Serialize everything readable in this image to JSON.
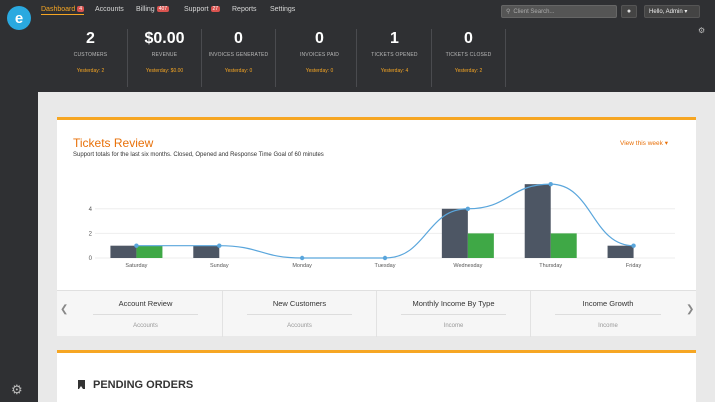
{
  "brand": {
    "logo_letter": "e"
  },
  "nav": {
    "items": [
      {
        "label": "Dashboard",
        "badge": "4",
        "active": true
      },
      {
        "label": "Accounts",
        "badge": ""
      },
      {
        "label": "Billing",
        "badge": "407"
      },
      {
        "label": "Support",
        "badge": "27"
      },
      {
        "label": "Reports",
        "badge": ""
      },
      {
        "label": "Settings",
        "badge": ""
      }
    ],
    "search_placeholder": "Client Search...",
    "notify_icon": "bell-icon",
    "user_label": "Hello, Admin"
  },
  "stats": [
    {
      "value": "2",
      "label": "CUSTOMERS",
      "yesterday": "Yesterday: 2"
    },
    {
      "value": "$0.00",
      "label": "REVENUE",
      "yesterday": "Yesterday: $0.00"
    },
    {
      "value": "0",
      "label": "INVOICES GENERATED",
      "yesterday": "Yesterday: 0"
    },
    {
      "value": "0",
      "label": "INVOICES PAID",
      "yesterday": "Yesterday: 0"
    },
    {
      "value": "1",
      "label": "TICKETS OPENED",
      "yesterday": "Yesterday: 4"
    },
    {
      "value": "0",
      "label": "TICKETS CLOSED",
      "yesterday": "Yesterday: 2"
    }
  ],
  "panel": {
    "title": "Tickets Review",
    "subtitle": "Support totals for the last six months. Closed, Opened and Response Time Goal of 60 minutes",
    "view_label": "View this week"
  },
  "chart_data": {
    "type": "bar",
    "categories": [
      "Saturday",
      "Sunday",
      "Monday",
      "Tuesday",
      "Wednesday",
      "Thursday",
      "Friday"
    ],
    "series": [
      {
        "values": [
          1,
          1,
          0,
          0,
          4,
          6,
          1
        ],
        "color": "#4d5664"
      },
      {
        "values": [
          1,
          0,
          0,
          0,
          2,
          2,
          0
        ],
        "color": "#3fa846"
      },
      {
        "type": "line",
        "values": [
          1,
          1,
          0,
          0,
          4,
          6,
          1
        ],
        "color": "#5aa6dc"
      }
    ],
    "yticks": [
      0,
      2,
      4
    ],
    "ylim": [
      0,
      6.5
    ],
    "grid": true
  },
  "tabs": [
    {
      "title": "Account Review",
      "sub": "Accounts"
    },
    {
      "title": "New Customers",
      "sub": "Accounts"
    },
    {
      "title": "Monthly Income By Type",
      "sub": "Income"
    },
    {
      "title": "Income Growth",
      "sub": "Income"
    }
  ],
  "pending": {
    "title": "PENDING ORDERS"
  }
}
